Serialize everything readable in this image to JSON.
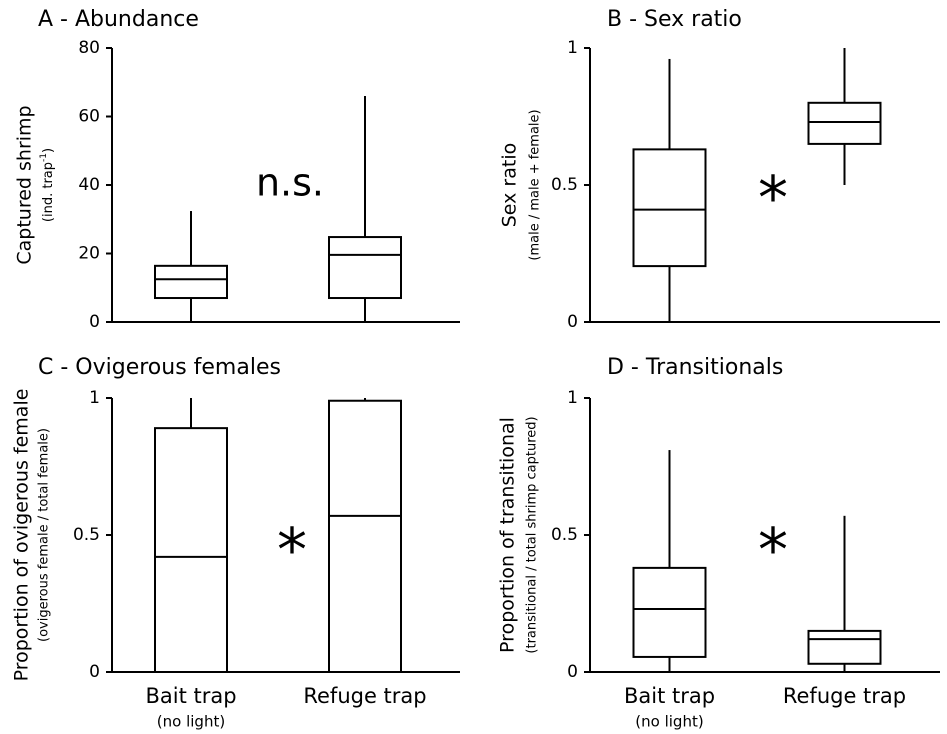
{
  "chart_data": [
    {
      "type": "box",
      "title": "A - Abundance",
      "ylabel": "Captured shrimp",
      "ylabel_sub": [
        "(ind. trap",
        "-1",
        ")"
      ],
      "annotation": "n.s.",
      "categories": [
        null,
        null
      ],
      "boxes": [
        {
          "min": 0,
          "q1": 7,
          "median": 12.5,
          "q3": 16.4,
          "max": 32.4
        },
        {
          "min": 0,
          "q1": 7,
          "median": 19.6,
          "q3": 24.8,
          "max": 66
        }
      ],
      "ylim": [
        0,
        80
      ],
      "yticks": [
        0,
        20,
        40,
        60,
        80
      ]
    },
    {
      "type": "box",
      "title": "B - Sex ratio",
      "ylabel": "Sex ratio",
      "ylabel_sub": "(male / male + female)",
      "annotation": "*",
      "categories": [
        null,
        null
      ],
      "boxes": [
        {
          "min": 0,
          "q1": 0.204,
          "median": 0.41,
          "q3": 0.63,
          "max": 0.96
        },
        {
          "min": 0.5,
          "q1": 0.65,
          "median": 0.73,
          "q3": 0.8,
          "max": 1
        }
      ],
      "ylim": [
        0,
        1
      ],
      "yticks": [
        0,
        0.5,
        1
      ]
    },
    {
      "type": "box",
      "title": "C - Ovigerous females",
      "ylabel": "Proportion of ovigerous female",
      "ylabel_sub": "(ovigerous female / total female)",
      "annotation": "*",
      "categories": [
        "Bait trap",
        "Refuge trap"
      ],
      "category_notes": [
        "(no light)",
        null
      ],
      "boxes": [
        {
          "min": 0,
          "q1": 0,
          "median": 0.42,
          "q3": 0.89,
          "max": 1
        },
        {
          "min": 0,
          "q1": 0,
          "median": 0.57,
          "q3": 0.99,
          "max": 1
        }
      ],
      "ylim": [
        0,
        1
      ],
      "yticks": [
        0,
        0.5,
        1
      ]
    },
    {
      "type": "box",
      "title": "D - Transitionals",
      "ylabel": "Proportion of transitional",
      "ylabel_sub": "(transitional / total shrimp captured)",
      "annotation": "*",
      "categories": [
        "Bait trap",
        "Refuge trap"
      ],
      "category_notes": [
        "(no light)",
        null
      ],
      "boxes": [
        {
          "min": 0,
          "q1": 0.055,
          "median": 0.23,
          "q3": 0.38,
          "max": 0.81
        },
        {
          "min": 0,
          "q1": 0.03,
          "median": 0.12,
          "q3": 0.15,
          "max": 0.57
        }
      ],
      "ylim": [
        0,
        1
      ],
      "yticks": [
        0,
        0.5,
        1
      ]
    }
  ]
}
